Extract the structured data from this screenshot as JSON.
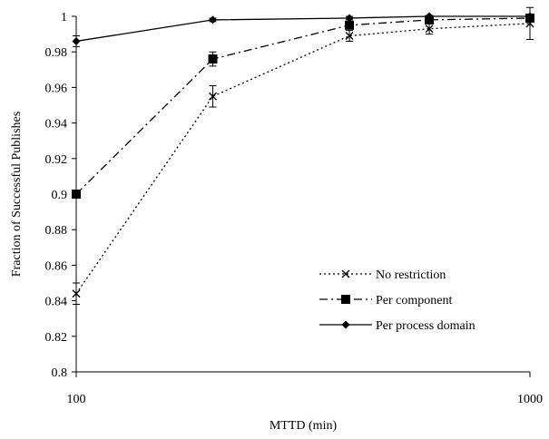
{
  "chart_data": {
    "type": "line",
    "xlabel": "MTTD (min)",
    "ylabel": "Fraction of Successful Publishes",
    "xscale": "log",
    "xlim": [
      100,
      1000
    ],
    "ylim": [
      0.8,
      1.0
    ],
    "x_ticks": [
      100,
      1000
    ],
    "x_tick_labels": [
      "100",
      "1000"
    ],
    "y_ticks": [
      0.8,
      0.82,
      0.84,
      0.86,
      0.88,
      0.9,
      0.92,
      0.94,
      0.96,
      0.98,
      1.0
    ],
    "y_tick_labels": [
      "0.8",
      "0.82",
      "0.84",
      "0.86",
      "0.88",
      "0.9",
      "0.92",
      "0.94",
      "0.96",
      "0.98",
      "1"
    ],
    "grid": false,
    "legend_position": "bottom-right",
    "x": [
      100,
      200,
      400,
      600,
      1000
    ],
    "series": [
      {
        "name": "No restriction",
        "line_style": "dotted",
        "marker": "x",
        "color": "#000000",
        "values": [
          0.844,
          0.955,
          0.989,
          0.993,
          0.996
        ],
        "errors": [
          0.006,
          0.006,
          0.003,
          0.003,
          0.009
        ]
      },
      {
        "name": "Per component",
        "line_style": "dashdot",
        "marker": "square",
        "color": "#000000",
        "values": [
          0.9,
          0.976,
          0.995,
          0.998,
          0.999
        ],
        "errors": [
          0.002,
          0.004,
          0.002,
          0.002,
          0.002
        ]
      },
      {
        "name": "Per process domain",
        "line_style": "solid",
        "marker": "diamond",
        "color": "#000000",
        "values": [
          0.986,
          0.998,
          0.999,
          1.0,
          1.0
        ],
        "errors": [
          0.003,
          0.001,
          0.001,
          0.0005,
          0.0005
        ]
      }
    ]
  }
}
